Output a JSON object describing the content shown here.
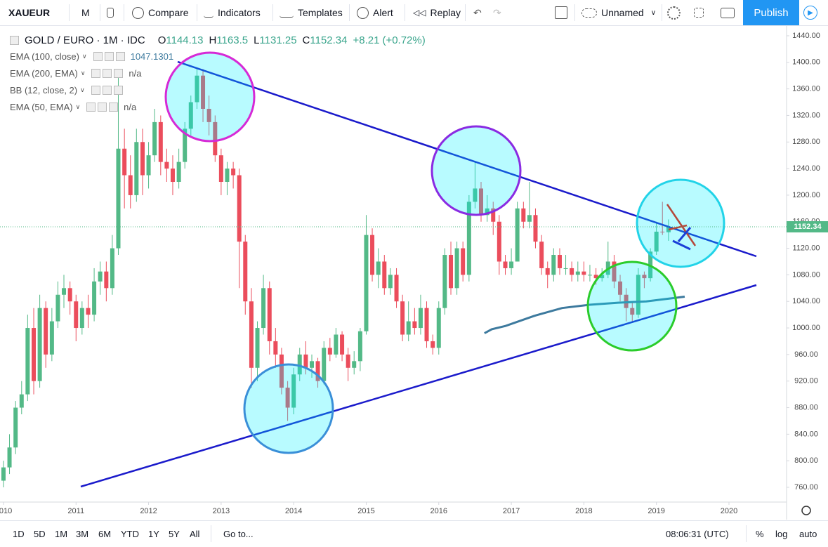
{
  "toolbar": {
    "symbol": "XAUEUR",
    "interval": "M",
    "compare": "Compare",
    "indicators": "Indicators",
    "templates": "Templates",
    "alert": "Alert",
    "replay": "Replay",
    "layout": "Unnamed",
    "publish": "Publish"
  },
  "legend": {
    "title": "GOLD / EURO · 1M · IDC",
    "open_label": "O",
    "high_label": "H",
    "low_label": "L",
    "close_label": "C",
    "change": "+8.21",
    "change_pct": "(+0.72%)"
  },
  "bottom_bar": {
    "ranges": [
      "1D",
      "5D",
      "1M",
      "3M",
      "6M",
      "YTD",
      "1Y",
      "5Y",
      "All"
    ],
    "goto": "Go to...",
    "clock": "08:06:31 (UTC)",
    "percent": "%",
    "log": "log",
    "auto": "auto"
  },
  "chart_data": {
    "type": "candlestick",
    "x": [
      2010,
      2010.083,
      2010.167,
      2010.25,
      2010.333,
      2010.417,
      2010.5,
      2010.583,
      2010.667,
      2010.75,
      2010.833,
      2010.917,
      2011,
      2011.083,
      2011.167,
      2011.25,
      2011.333,
      2011.417,
      2011.5,
      2011.583,
      2011.667,
      2011.75,
      2011.833,
      2011.917,
      2012,
      2012.083,
      2012.167,
      2012.25,
      2012.333,
      2012.417,
      2012.5,
      2012.583,
      2012.667,
      2012.75,
      2012.833,
      2012.917,
      2013,
      2013.083,
      2013.167,
      2013.25,
      2013.333,
      2013.417,
      2013.5,
      2013.583,
      2013.667,
      2013.75,
      2013.833,
      2013.917,
      2014,
      2014.083,
      2014.167,
      2014.25,
      2014.333,
      2014.417,
      2014.5,
      2014.583,
      2014.667,
      2014.75,
      2014.833,
      2014.917,
      2015,
      2015.083,
      2015.167,
      2015.25,
      2015.333,
      2015.417,
      2015.5,
      2015.583,
      2015.667,
      2015.75,
      2015.833,
      2015.917,
      2016,
      2016.083,
      2016.167,
      2016.25,
      2016.333,
      2016.417,
      2016.5,
      2016.583,
      2016.667,
      2016.75,
      2016.833,
      2016.917,
      2017,
      2017.083,
      2017.167,
      2017.25,
      2017.333,
      2017.417,
      2017.5,
      2017.583,
      2017.667,
      2017.75,
      2017.833,
      2017.917,
      2018,
      2018.083,
      2018.167,
      2018.25,
      2018.333,
      2018.417,
      2018.5,
      2018.583,
      2018.667,
      2018.75,
      2018.833,
      2018.917,
      2019,
      2019.083,
      2019.167
    ],
    "open": [
      770,
      790,
      820,
      880,
      900,
      1000,
      920,
      1030,
      960,
      1010,
      1050,
      1060,
      1040,
      1000,
      1030,
      1020,
      1070,
      1085,
      1060,
      1120,
      1270,
      1230,
      1200,
      1280,
      1230,
      1260,
      1310,
      1250,
      1240,
      1220,
      1250,
      1300,
      1340,
      1380,
      1330,
      1310,
      1260,
      1220,
      1240,
      1230,
      1130,
      1040,
      940,
      1000,
      1060,
      980,
      960,
      910,
      880,
      930,
      960,
      940,
      950,
      920,
      970,
      960,
      990,
      960,
      940,
      950,
      995,
      1140,
      1080,
      1100,
      1060,
      1080,
      1040,
      990,
      1010,
      1000,
      1030,
      980,
      970,
      1030,
      1110,
      1060,
      1120,
      1080,
      1190,
      1210,
      1170,
      1180,
      1160,
      1100,
      1090,
      1100,
      1180,
      1160,
      1170,
      1130,
      1090,
      1080,
      1110,
      1090,
      1090,
      1080,
      1085,
      1080,
      1080,
      1075,
      1080,
      1100,
      1070,
      1050,
      1030,
      1020,
      1080,
      1075,
      1115,
      1145,
      1144.13
    ],
    "high": [
      800,
      840,
      890,
      920,
      1020,
      1030,
      1050,
      1040,
      1030,
      1070,
      1080,
      1070,
      1050,
      1040,
      1050,
      1090,
      1100,
      1100,
      1140,
      1380,
      1300,
      1260,
      1300,
      1300,
      1280,
      1330,
      1320,
      1270,
      1260,
      1270,
      1310,
      1350,
      1390,
      1390,
      1350,
      1320,
      1270,
      1250,
      1250,
      1240,
      1140,
      1060,
      1010,
      1080,
      1070,
      1000,
      970,
      920,
      940,
      970,
      980,
      960,
      955,
      980,
      985,
      1000,
      995,
      970,
      965,
      1000,
      1170,
      1150,
      1120,
      1110,
      1090,
      1090,
      1050,
      1040,
      1030,
      1050,
      1040,
      990,
      1040,
      1120,
      1130,
      1130,
      1130,
      1200,
      1250,
      1220,
      1200,
      1190,
      1170,
      1110,
      1120,
      1190,
      1190,
      1220,
      1180,
      1140,
      1100,
      1120,
      1120,
      1110,
      1100,
      1100,
      1100,
      1095,
      1090,
      1090,
      1130,
      1110,
      1080,
      1060,
      1040,
      1090,
      1085,
      1120,
      1160,
      1190,
      1163.5
    ],
    "low": [
      760,
      780,
      810,
      870,
      890,
      900,
      910,
      940,
      950,
      1000,
      1030,
      1020,
      980,
      990,
      1000,
      1010,
      1050,
      1040,
      1050,
      1110,
      1180,
      1180,
      1190,
      1200,
      1210,
      1250,
      1230,
      1220,
      1200,
      1210,
      1240,
      1290,
      1330,
      1310,
      1290,
      1250,
      1200,
      1200,
      1210,
      1060,
      1020,
      910,
      920,
      990,
      960,
      940,
      900,
      860,
      870,
      920,
      930,
      925,
      910,
      915,
      950,
      955,
      950,
      920,
      930,
      935,
      990,
      1070,
      1060,
      1050,
      1050,
      1030,
      980,
      980,
      990,
      990,
      970,
      960,
      960,
      1020,
      1050,
      1050,
      1070,
      1070,
      1180,
      1160,
      1160,
      1140,
      1080,
      1080,
      1080,
      1100,
      1150,
      1150,
      1120,
      1080,
      1060,
      1070,
      1080,
      1080,
      1070,
      1070,
      1070,
      1070,
      1065,
      1070,
      1075,
      1060,
      1040,
      1010,
      1010,
      1015,
      1060,
      1070,
      1110,
      1140,
      1131.25
    ],
    "close": [
      790,
      820,
      880,
      900,
      1000,
      920,
      1030,
      960,
      1010,
      1050,
      1060,
      1040,
      1000,
      1030,
      1020,
      1070,
      1085,
      1060,
      1120,
      1270,
      1230,
      1200,
      1280,
      1230,
      1260,
      1310,
      1250,
      1240,
      1220,
      1250,
      1300,
      1340,
      1380,
      1330,
      1310,
      1260,
      1220,
      1240,
      1230,
      1130,
      1040,
      940,
      1000,
      1060,
      980,
      960,
      910,
      880,
      930,
      960,
      940,
      950,
      920,
      970,
      960,
      990,
      960,
      940,
      950,
      995,
      1140,
      1080,
      1100,
      1060,
      1080,
      1040,
      990,
      1010,
      1000,
      1030,
      980,
      970,
      1030,
      1110,
      1060,
      1120,
      1080,
      1190,
      1210,
      1170,
      1180,
      1160,
      1100,
      1090,
      1100,
      1180,
      1160,
      1170,
      1130,
      1090,
      1080,
      1110,
      1090,
      1090,
      1080,
      1085,
      1080,
      1080,
      1075,
      1080,
      1100,
      1070,
      1050,
      1030,
      1020,
      1080,
      1075,
      1115,
      1145,
      1144.13,
      1152.34
    ],
    "up_color": "#53b987",
    "down_color": "#eb4d5c",
    "indicators": [
      {
        "name": "EMA (100, close)",
        "color": "#3d7a9e",
        "x": [
          2016.63,
          2016.73,
          2016.92,
          2017.31,
          2017.7,
          2018.08,
          2018.47,
          2018.86,
          2019.39
        ],
        "values": [
          992,
          998,
          1003,
          1018,
          1030,
          1035,
          1038,
          1040,
          1047.1301
        ]
      },
      {
        "name": "EMA (200, EMA)",
        "value_label": "n/a"
      },
      {
        "name": "BB (12, close, 2)"
      },
      {
        "name": "EMA (50, EMA)",
        "value_label": "n/a"
      }
    ],
    "xlim": [
      2009.952,
      2020.794
    ],
    "xticks": [
      2010,
      2011,
      2012,
      2013,
      2014,
      2015,
      2016,
      2017,
      2018,
      2019,
      2020
    ],
    "ylim": [
      737.8,
      1453.7
    ],
    "yticks": [
      {
        "value": 760,
        "label": "760.00"
      },
      {
        "value": 800,
        "label": "800.00"
      },
      {
        "value": 840,
        "label": "840.00"
      },
      {
        "value": 880,
        "label": "880.00"
      },
      {
        "value": 920,
        "label": "920.00"
      },
      {
        "value": 960,
        "label": "960.00"
      },
      {
        "value": 1000,
        "label": "1000.00"
      },
      {
        "value": 1040,
        "label": "1040.00"
      },
      {
        "value": 1080,
        "label": "1080.00"
      },
      {
        "value": 1120,
        "label": "1120.00"
      },
      {
        "value": 1160,
        "label": "1160.00"
      },
      {
        "value": 1200,
        "label": "1200.00"
      },
      {
        "value": 1240,
        "label": "1240.00"
      },
      {
        "value": 1280,
        "label": "1280.00"
      },
      {
        "value": 1320,
        "label": "1320.00"
      },
      {
        "value": 1360,
        "label": "1360.00"
      },
      {
        "value": 1400,
        "label": "1400.00"
      },
      {
        "value": 1440,
        "label": "1440.00"
      }
    ],
    "grid": false
  }
}
